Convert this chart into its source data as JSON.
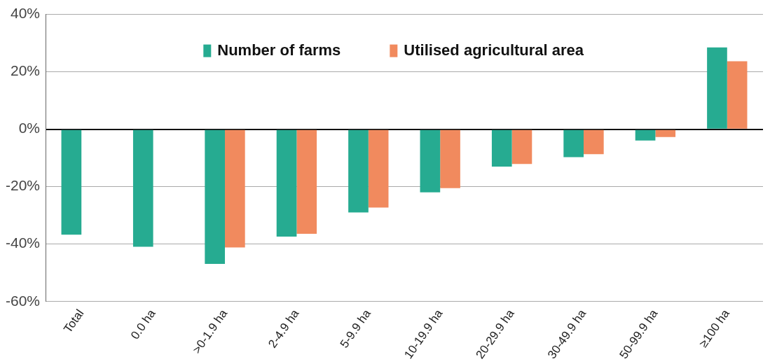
{
  "chart_data": {
    "type": "bar",
    "categories": [
      "Total",
      "0.0 ha",
      ">0-1.9 ha",
      "2-4.9 ha",
      "5-9.9 ha",
      "10-19.9 ha",
      "20-29.9 ha",
      "30-49.9 ha",
      "50-99.9 ha",
      "≥100 ha"
    ],
    "series": [
      {
        "name": "Number of farms",
        "color": "#26ab91",
        "values": [
          -36.7,
          -40.9,
          -46.9,
          -37.4,
          -29.0,
          -22.0,
          -13.0,
          -9.7,
          -3.9,
          28.5
        ]
      },
      {
        "name": "Utilised agricultural area",
        "color": "#f18a5e",
        "values": [
          null,
          0,
          -41.2,
          -36.4,
          -27.3,
          -20.5,
          -12.1,
          -8.7,
          -2.7,
          23.7
        ]
      }
    ],
    "ylim": [
      -60,
      40
    ],
    "yticks": [
      {
        "value": -60,
        "label": "-60%"
      },
      {
        "value": -40,
        "label": "-40%"
      },
      {
        "value": -20,
        "label": "-20%"
      },
      {
        "value": 0,
        "label": "0%"
      },
      {
        "value": 20,
        "label": "20%"
      },
      {
        "value": 40,
        "label": "40%"
      }
    ],
    "grid": "y",
    "legend": "top"
  }
}
